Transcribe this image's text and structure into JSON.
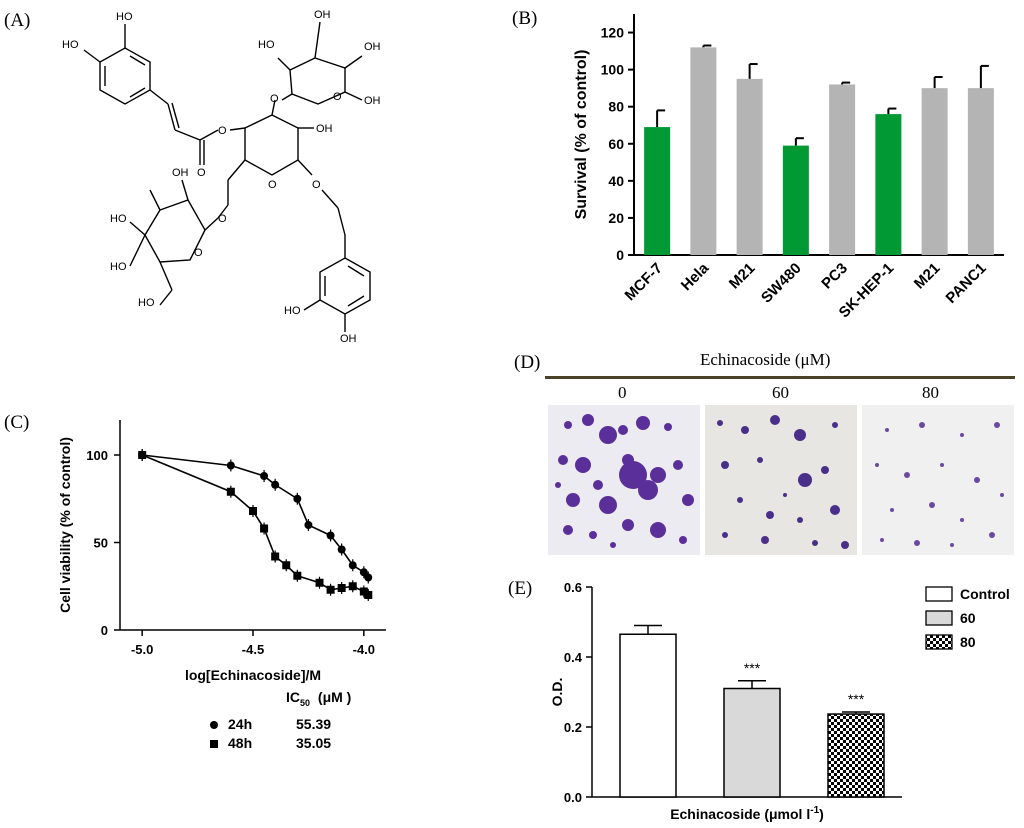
{
  "panels": {
    "a": "(A)",
    "b": "(B)",
    "c": "(C)",
    "d": "(D)",
    "e": "(E)"
  },
  "molecule": {
    "labels": [
      "HO",
      "HO",
      "HO",
      "OH",
      "OH",
      "OH",
      "OH",
      "O",
      "O",
      "O",
      "O",
      "O",
      "O",
      "O",
      "O",
      "HO",
      "HO",
      "OH",
      "HO",
      "HO",
      "OH"
    ]
  },
  "chart_b": {
    "type": "bar",
    "ylabel": "Survival  (% of control)",
    "ylim": [
      0,
      130
    ],
    "yticks": [
      0,
      20,
      40,
      60,
      80,
      100,
      120
    ],
    "categories": [
      "MCF-7",
      "Hela",
      "M21",
      "SW480",
      "PC3",
      "SK-HEP-1",
      "M21",
      "PANC1"
    ],
    "values": [
      69,
      112,
      95,
      59,
      92,
      76,
      90,
      90
    ],
    "errors": [
      9,
      1,
      8,
      4,
      1,
      3,
      6,
      12
    ],
    "highlight": [
      true,
      false,
      false,
      true,
      false,
      true,
      false,
      false
    ],
    "colors": {
      "highlight": "#009933",
      "other": "#b4b4b4"
    }
  },
  "chart_c": {
    "type": "scatter",
    "xlabel": "log[Echinacoside]/M",
    "ylabel": "Cell viability (% of control)",
    "xlim": [
      -5.1,
      -3.9
    ],
    "ylim": [
      0,
      120
    ],
    "xticks": [
      "-5.0",
      "-4.5",
      "-4.0"
    ],
    "yticks": [
      "0",
      "50",
      "100"
    ],
    "series": [
      {
        "name": "24h",
        "marker": "circle",
        "x": [
          -5.0,
          -4.6,
          -4.45,
          -4.4,
          -4.3,
          -4.25,
          -4.15,
          -4.1,
          -4.05,
          -4.0,
          -3.98
        ],
        "y": [
          100,
          94,
          88,
          83,
          75,
          60,
          54,
          46,
          37,
          33,
          30
        ]
      },
      {
        "name": "48h",
        "marker": "square",
        "x": [
          -5.0,
          -4.6,
          -4.5,
          -4.45,
          -4.4,
          -4.35,
          -4.3,
          -4.2,
          -4.15,
          -4.1,
          -4.05,
          -4.0,
          -3.98
        ],
        "y": [
          100,
          79,
          68,
          58,
          42,
          37,
          31,
          27,
          23,
          24,
          25,
          22,
          20
        ]
      }
    ],
    "ic50": {
      "header": "IC",
      "header_sub": "50",
      "header_unit": "(μM )",
      "rows": [
        {
          "label": "24h",
          "value": "55.39"
        },
        {
          "label": "48h",
          "value": "35.05"
        }
      ]
    }
  },
  "panel_d": {
    "title": "Echinacoside (μM)",
    "labels": [
      "0",
      "60",
      "80"
    ]
  },
  "chart_e": {
    "type": "bar",
    "xlabel": "Echinacoside (μmol l",
    "xlabel_sup": "-1",
    "xlabel_end": ")",
    "ylabel": "O.D.",
    "ylim": [
      0,
      0.6
    ],
    "yticks": [
      "0.0",
      "0.2",
      "0.4",
      "0.6"
    ],
    "categories": [
      "Control",
      "60",
      "80"
    ],
    "values": [
      0.465,
      0.31,
      0.237
    ],
    "errors": [
      0.025,
      0.022,
      0.006
    ],
    "significance": [
      "",
      "***",
      "***"
    ],
    "legend": [
      "Control",
      "60",
      "80"
    ]
  }
}
